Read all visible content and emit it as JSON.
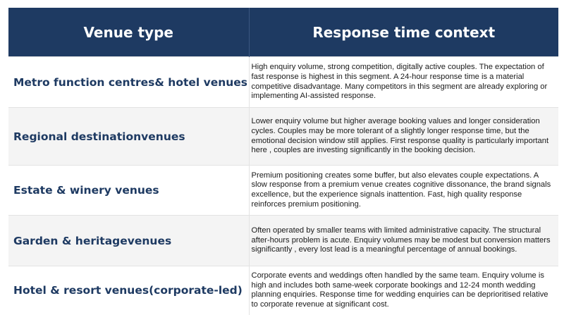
{
  "table": {
    "headers": {
      "venue_type": "Venue type",
      "response_context": "Response time context"
    },
    "rows": [
      {
        "venue_type": "Metro function centres& hotel venues",
        "context": "High enquiry volume, strong competition, digitally active couples. The expectation of fast response is highest in this segment. A 24-hour response time is a material competitive disadvantage. Many competitors in this segment are already exploring or implementing AI-assisted response."
      },
      {
        "venue_type": "Regional destinationvenues",
        "context": "Lower enquiry volume but higher average booking values and longer consideration cycles. Couples may be more tolerant of a slightly longer response time, but the emotional decision window still applies. First response quality is particularly important here , couples are investing significantly in the booking decision."
      },
      {
        "venue_type": "Estate & winery venues",
        "context": "Premium positioning creates some buffer, but also elevates couple expectations. A slow response from a premium venue creates cognitive dissonance, the brand signals excellence, but the experience signals inattention. Fast, high quality response reinforces premium positioning."
      },
      {
        "venue_type": "Garden & heritagevenues",
        "context": "Often operated by smaller teams with limited administrative capacity. The structural after-hours problem is acute. Enquiry volumes may be modest but conversion matters significantly , every lost lead is a meaningful percentage of annual bookings."
      },
      {
        "venue_type": "Hotel & resort venues(corporate-led)",
        "context": "Corporate events and weddings often handled by the same team. Enquiry volume is high and includes both same-week corporate bookings and 12-24 month wedding planning enquiries. Response time for wedding enquiries can be deprioritised relative to corporate revenue at significant cost."
      }
    ]
  }
}
